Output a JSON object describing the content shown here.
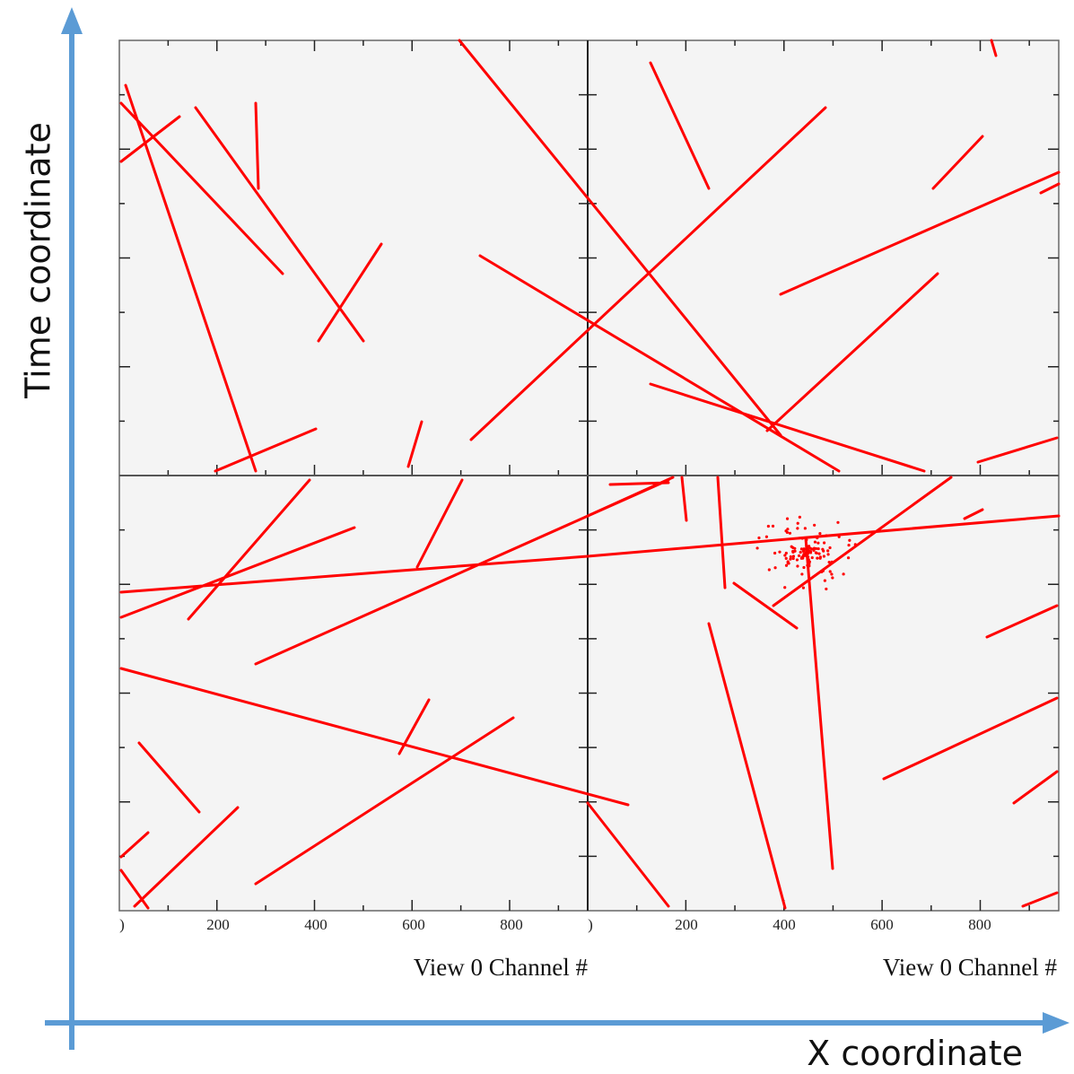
{
  "axes": {
    "y_label": "Time coordinate",
    "x_label": "X coordinate"
  },
  "panels": [
    {
      "x_tick_labels": [
        ")",
        "200",
        "400",
        "600",
        "800"
      ],
      "x_axis_title": "View 0 Channel #"
    },
    {
      "x_tick_labels": [
        ")",
        "200",
        "400",
        "600",
        "800"
      ],
      "x_axis_title": "View 0 Channel #"
    }
  ]
}
